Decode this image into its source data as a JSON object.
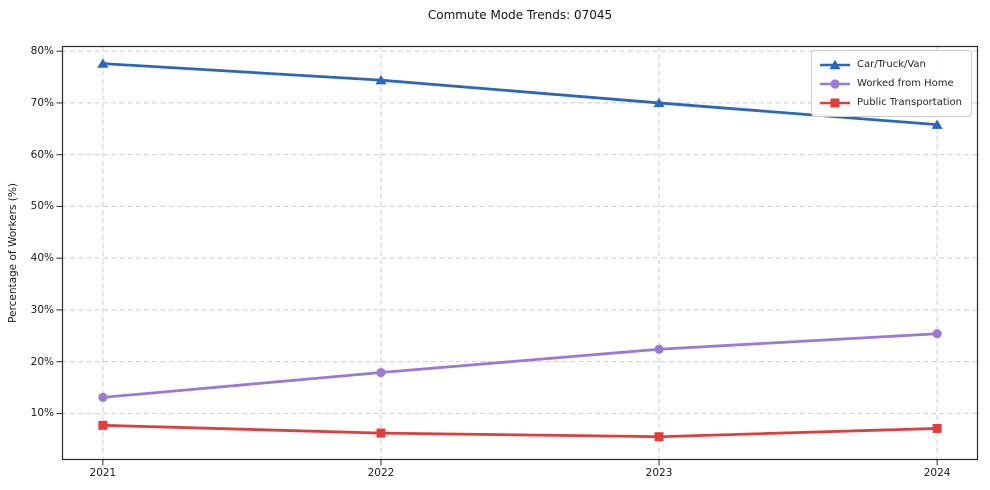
{
  "chart_data": {
    "type": "line",
    "title": "Commute Mode Trends: 07045",
    "ylabel": "Percentage of Workers (%)",
    "xlabel": "",
    "x": [
      2021,
      2022,
      2023,
      2024
    ],
    "x_tick_labels": [
      "2021",
      "2022",
      "2023",
      "2024"
    ],
    "series": [
      {
        "name": "Car/Truck/Van",
        "marker": "triangle",
        "color": "#2b67bf",
        "values": [
          77.6,
          74.4,
          70.0,
          65.8
        ]
      },
      {
        "name": "Worked from Home",
        "marker": "circle",
        "color": "#9b79d6",
        "values": [
          13.1,
          17.9,
          22.4,
          25.4
        ]
      },
      {
        "name": "Public Transportation",
        "marker": "square",
        "color": "#e23c3c",
        "values": [
          7.7,
          6.2,
          5.5,
          7.1
        ]
      }
    ],
    "yticks": [
      10,
      20,
      30,
      40,
      50,
      60,
      70,
      80
    ],
    "ytick_suffix": "%",
    "ylim": [
      1,
      81
    ],
    "xlim": [
      2020.853,
      2024.147
    ],
    "grid": {
      "on": true,
      "style": "dashed",
      "color": "#cccccc"
    },
    "axes": {
      "spine_color": "#2a2a2a",
      "tick_color": "#2a2a2a"
    },
    "legend": {
      "position": "upper right",
      "border_color": "#cccccc"
    }
  }
}
